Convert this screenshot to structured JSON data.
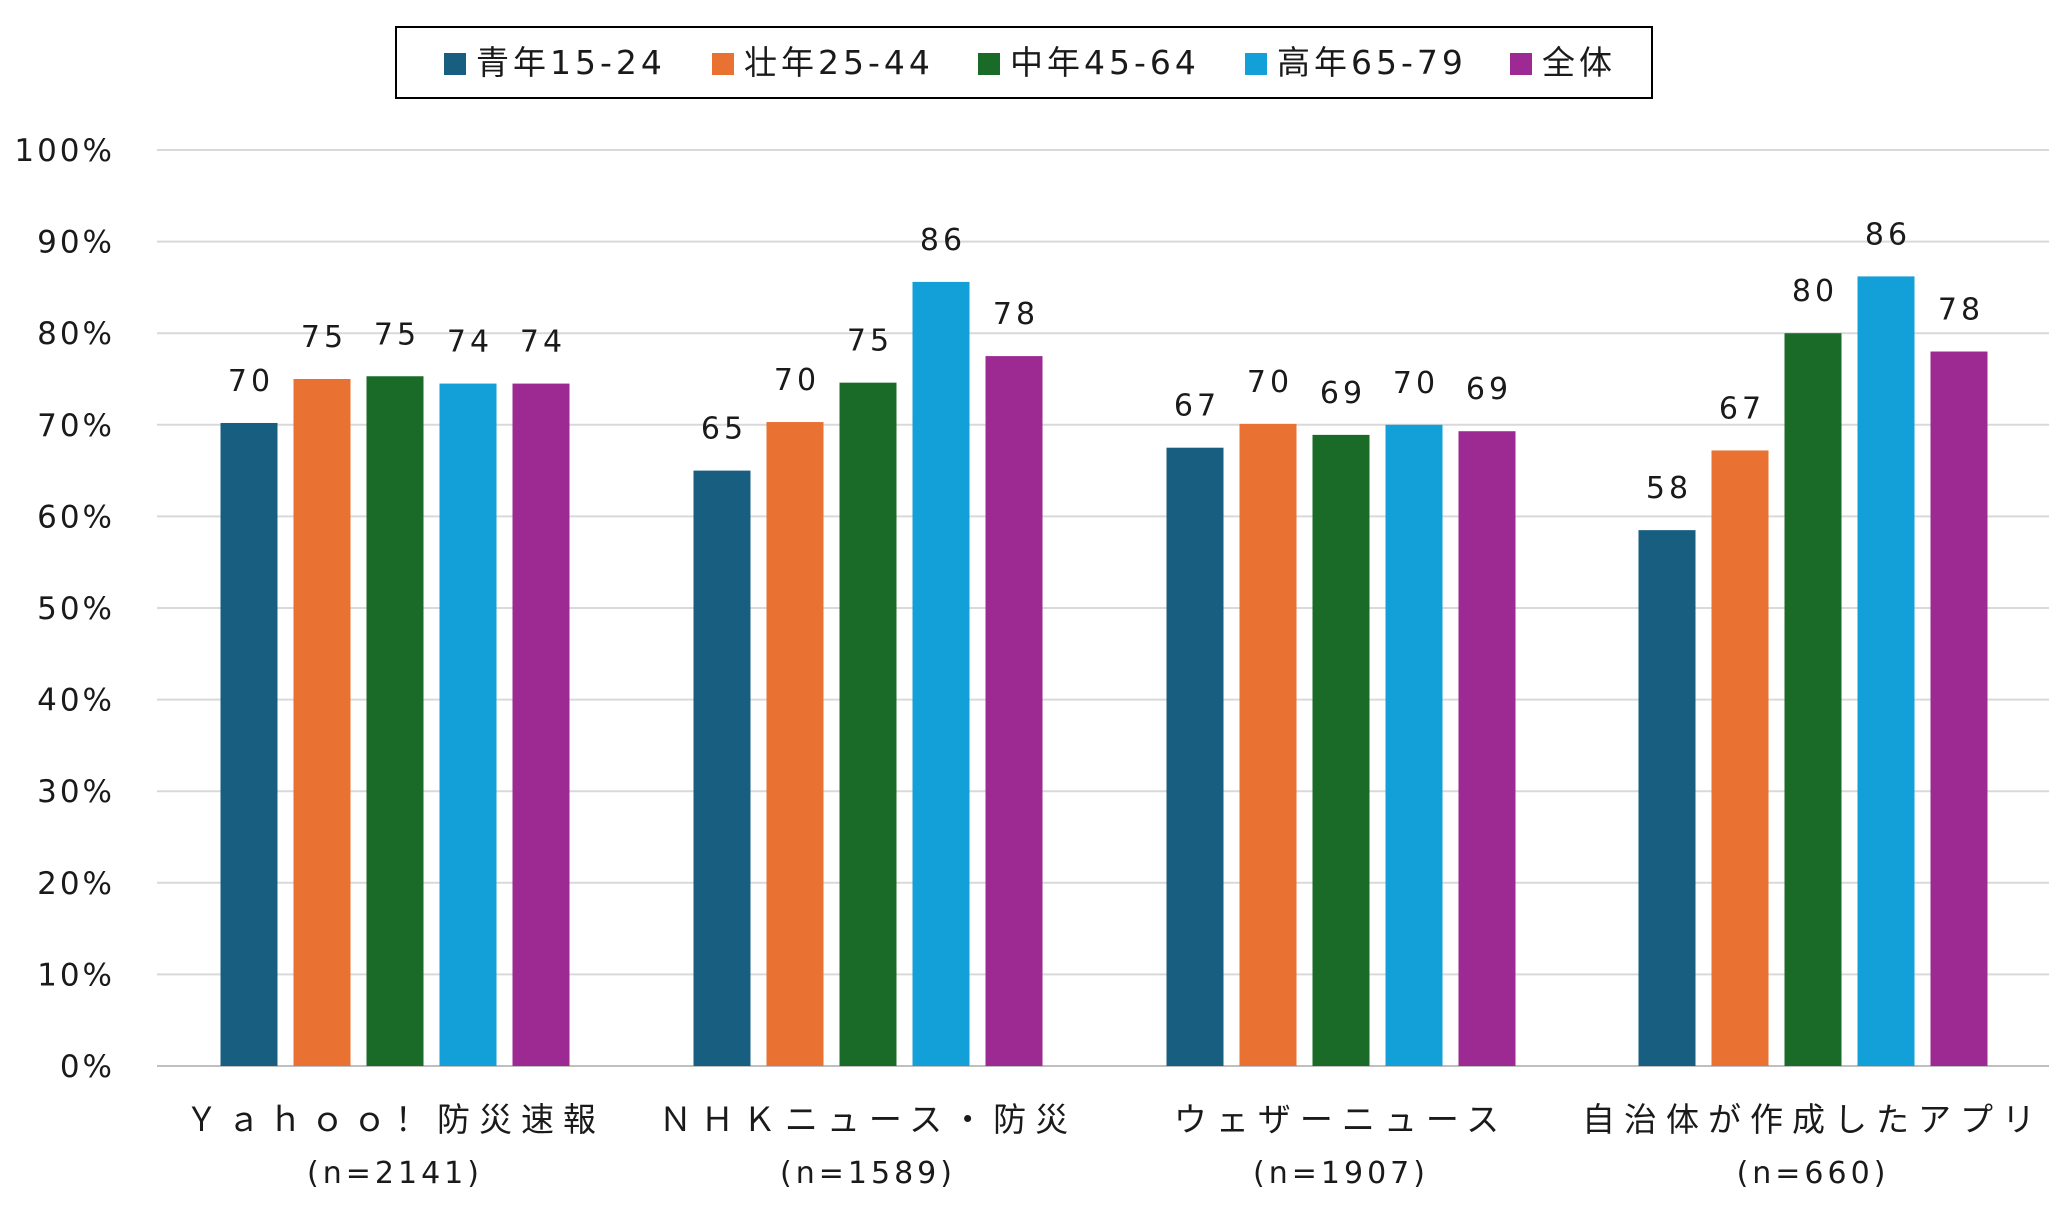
{
  "colors": {
    "series": [
      "#175e80",
      "#e97132",
      "#1a6b27",
      "#139fd8",
      "#9d2a92"
    ],
    "grid": "#d9d9d9",
    "axis": "#bfbfbf"
  },
  "chart_data": {
    "type": "bar",
    "title": "",
    "xlabel": "",
    "ylabel": "",
    "ylim": [
      0,
      100
    ],
    "y_ticks": [
      "0%",
      "10%",
      "20%",
      "30%",
      "40%",
      "50%",
      "60%",
      "70%",
      "80%",
      "90%",
      "100%"
    ],
    "grid": true,
    "legend_position": "top",
    "categories": [
      {
        "label": "Ｙａｈｏｏ！防災速報",
        "sub": "(n=2141)"
      },
      {
        "label": "ＮＨＫニュース・防災",
        "sub": "(n=1589)"
      },
      {
        "label": "ウェザーニュース",
        "sub": "(n=1907)"
      },
      {
        "label": "自治体が作成したアプリ",
        "sub": "(n=660)"
      }
    ],
    "series": [
      {
        "name": "青年15-24",
        "values": [
          70.2,
          65.0,
          67.5,
          58.5
        ],
        "labels": [
          "70",
          "65",
          "67",
          "58"
        ]
      },
      {
        "name": "壮年25-44",
        "values": [
          75.0,
          70.3,
          70.1,
          67.2
        ],
        "labels": [
          "75",
          "70",
          "70",
          "67"
        ]
      },
      {
        "name": "中年45-64",
        "values": [
          75.3,
          74.6,
          68.9,
          80.0
        ],
        "labels": [
          "75",
          "75",
          "69",
          "80"
        ]
      },
      {
        "name": "高年65-79",
        "values": [
          74.5,
          85.6,
          70.0,
          86.2
        ],
        "labels": [
          "74",
          "86",
          "70",
          "86"
        ]
      },
      {
        "name": "全体",
        "values": [
          74.5,
          77.5,
          69.3,
          78.0
        ],
        "labels": [
          "74",
          "78",
          "69",
          "78"
        ]
      }
    ]
  }
}
